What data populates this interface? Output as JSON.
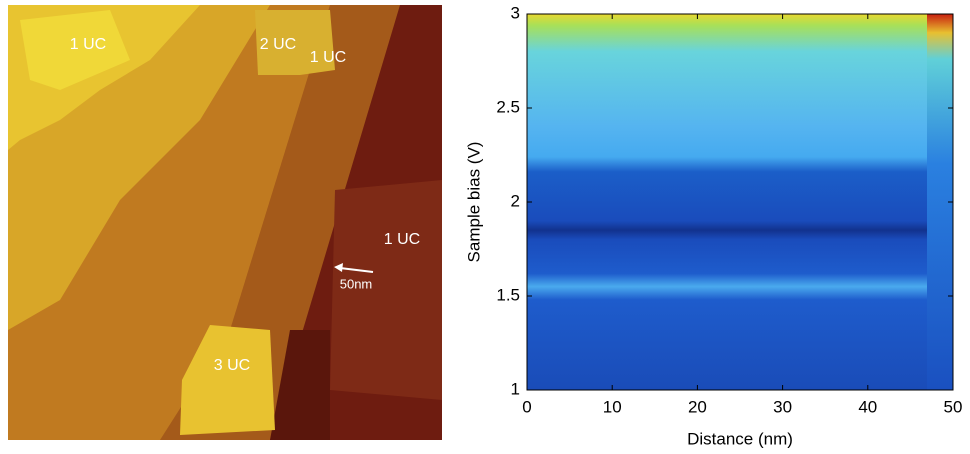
{
  "stm_image": {
    "labels": [
      "1 UC",
      "2 UC",
      "1 UC",
      "1 UC",
      "3 UC"
    ],
    "scale_bar": "50nm"
  },
  "spectrum_map": {
    "xlabel": "Distance (nm)",
    "ylabel": "Sample bias (V)",
    "xlim": [
      0,
      50
    ],
    "ylim": [
      1,
      3
    ],
    "xticks": [
      0,
      10,
      20,
      30,
      40,
      50
    ],
    "yticks": [
      1,
      1.5,
      2,
      2.5,
      3
    ]
  }
}
